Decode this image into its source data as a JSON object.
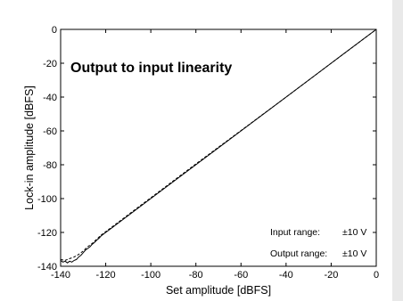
{
  "page": {
    "background": "#e9e9e9",
    "panel_background": "#ffffff"
  },
  "chart_data": {
    "type": "line",
    "title": "Output to input linearity",
    "xlabel": "Set amplitude [dBFS]",
    "ylabel": "Lock-in amplitude [dBFS]",
    "xlim": [
      -140,
      0
    ],
    "ylim": [
      -140,
      0
    ],
    "xticks": [
      -140,
      -120,
      -100,
      -80,
      -60,
      -40,
      -20,
      0
    ],
    "yticks": [
      0,
      -20,
      -40,
      -60,
      -80,
      -100,
      -120,
      -140
    ],
    "grid": false,
    "annotations": [
      {
        "label": "Input range:",
        "value": "±10 V"
      },
      {
        "label": "Output range:",
        "value": "±10 V"
      }
    ],
    "series": [
      {
        "style": "solid",
        "color": "#000000",
        "x": [
          -140,
          -139,
          -138,
          -137,
          -136,
          -135,
          -134,
          -133,
          -132,
          -131,
          -130,
          -129,
          -128,
          -127,
          -126,
          -125,
          -124,
          -123,
          -122,
          -120,
          -110,
          -100,
          -80,
          -60,
          -40,
          -20,
          0
        ],
        "y": [
          -136.5,
          -137.5,
          -137,
          -138,
          -137,
          -137.5,
          -136.5,
          -136,
          -134.5,
          -133.5,
          -132,
          -130.5,
          -129.5,
          -128.5,
          -127,
          -126,
          -124.5,
          -123.5,
          -122,
          -120,
          -110,
          -100,
          -80,
          -60,
          -40,
          -20,
          0
        ]
      },
      {
        "style": "dashed",
        "color": "#000000",
        "x": [
          -140,
          -138,
          -136,
          -134,
          -132,
          -130,
          -128,
          -126,
          -124,
          -122,
          -120,
          -100,
          -80,
          -60,
          -40,
          -20,
          0
        ],
        "y": [
          -136,
          -136.5,
          -135.5,
          -134.5,
          -133,
          -131,
          -128.5,
          -126.5,
          -124,
          -121.5,
          -119.5,
          -99.5,
          -79.5,
          -59.8,
          -40,
          -20,
          0
        ]
      }
    ]
  }
}
